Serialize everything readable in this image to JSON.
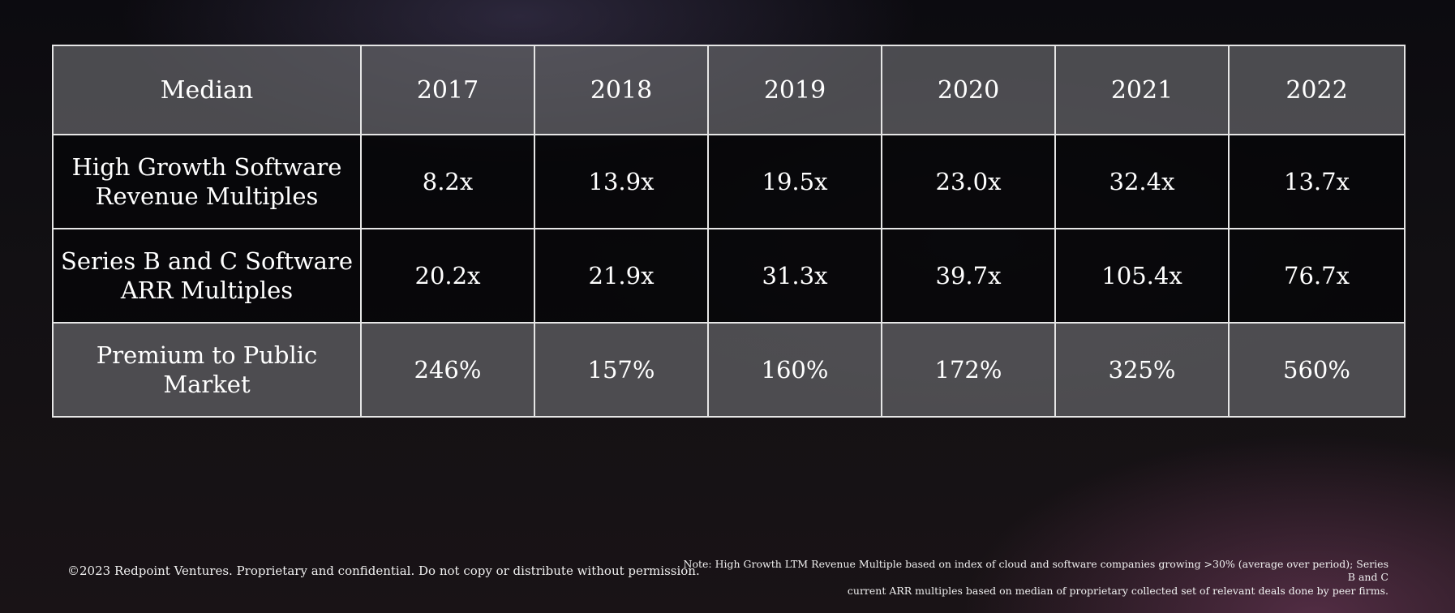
{
  "table": {
    "header": {
      "label": "Median",
      "years": [
        "2017",
        "2018",
        "2019",
        "2020",
        "2021",
        "2022"
      ]
    },
    "rows": [
      {
        "label_line1": "High Growth Software",
        "label_line2": "Revenue Multiples",
        "values": [
          "8.2x",
          "13.9x",
          "19.5x",
          "23.0x",
          "32.4x",
          "13.7x"
        ]
      },
      {
        "label_line1": "Series B and C Software",
        "label_line2": "ARR Multiples",
        "values": [
          "20.2x",
          "21.9x",
          "31.3x",
          "39.7x",
          "105.4x",
          "76.7x"
        ]
      },
      {
        "label_line1": "Premium to Public",
        "label_line2": "Market",
        "values": [
          "246%",
          "157%",
          "160%",
          "172%",
          "325%",
          "560%"
        ]
      }
    ]
  },
  "footer": {
    "copyright": "©2023 Redpoint Ventures. Proprietary and confidential. Do not copy or distribute without permission.",
    "note_line1": "Note: High Growth LTM Revenue Multiple based on index of cloud and software companies growing >30% (average over period); Series B and C",
    "note_line2": "current ARR multiples based on median of proprietary collected set of relevant deals done by peer firms."
  },
  "colors": {
    "grid_line": "#e6e6e6",
    "grey_row": "#646468",
    "dark_row": "#060608",
    "text": "#ffffff"
  }
}
